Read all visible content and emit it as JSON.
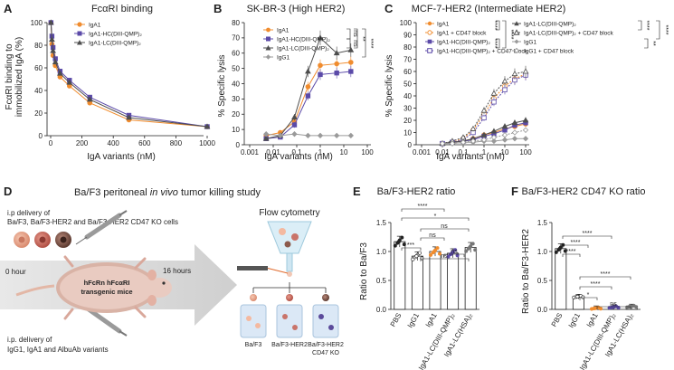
{
  "colors": {
    "iga1": "#f08c2e",
    "hc": "#5b4aa8",
    "lc": "#4d4d4d",
    "igg1": "#9a9a9a",
    "arrow": "#d8d8d8"
  },
  "panels": {
    "A": {
      "letter": "A",
      "title": "FcαRI binding",
      "ylabel": "FcαRI binding to immobilized IgA (%)",
      "xlabel": "IgA variants (nM)",
      "yticks": [
        "0",
        "20",
        "40",
        "60",
        "80",
        "100"
      ],
      "xticks": [
        "0",
        "200",
        "400",
        "600",
        "800",
        "1000"
      ],
      "legend": [
        "IgA1",
        "IgA1-HC(DIII-QMP)₂",
        "IgA1-LC(DIII-QMP)₂"
      ]
    },
    "B": {
      "letter": "B",
      "title": "SK-BR-3 (High HER2)",
      "ylabel": "% Specific lysis",
      "xlabel": "IgA variants (nM)",
      "yticks": [
        "0",
        "10",
        "20",
        "30",
        "40",
        "50",
        "60",
        "70",
        "80"
      ],
      "xticks": [
        "0.001",
        "0.01",
        "0.1",
        "1",
        "10",
        "100"
      ],
      "legend": [
        "IgA1",
        "IgA1-HC(DIII-QMP)₂",
        "IgA1-LC(DIII-QMP)₂",
        "IgG1"
      ],
      "sig": [
        "ns",
        "ns",
        "**",
        "****"
      ]
    },
    "C": {
      "letter": "C",
      "title": "MCF-7-HER2 (Intermediate HER2)",
      "ylabel": "% Specific lysis",
      "xlabel": "IgA variants (nM)",
      "yticks": [
        "0",
        "10",
        "20",
        "30",
        "40",
        "50",
        "60",
        "70",
        "80",
        "90",
        "100"
      ],
      "xticks": [
        "0.001",
        "0.01",
        "0.1",
        "1",
        "10",
        "100"
      ],
      "legend": [
        "IgA1",
        "IgA1 + CD47 block",
        "IgA1-HC(DIII-QMP)₂",
        "IgA1-HC(DIII-QMP)₂ + CD47 block",
        "IgA1-LC(DIII-QMP)₂",
        "IgA1-LC(DIII-QMP)₂ + CD47 block",
        "IgG1",
        "IgG1 + CD47 block"
      ],
      "sig": [
        "****",
        "****",
        "****",
        "****",
        "**",
        "****"
      ]
    },
    "D": {
      "letter": "D",
      "title_a": "Ba/F3 peritoneal ",
      "title_b": "in vivo",
      "title_c": " tumor killing study",
      "delivery_top": [
        "i.p delivery of",
        "Ba/F3, Ba/F3-HER2 and Ba/F3-HER2 CD47 KO cells"
      ],
      "hour0": "0 hour",
      "hour16": "16 hours",
      "mouse": [
        "hFcRn hFcαRI",
        "transgenic mice"
      ],
      "delivery_bottom": [
        "i.p. delivery of",
        "IgG1, IgA1 and AlbuAb variants"
      ],
      "flow": "Flow cytometry",
      "tubes": [
        "Ba/F3",
        "Ba/F3-HER2",
        "Ba/F3-HER2",
        "CD47 KO"
      ]
    },
    "E": {
      "letter": "E",
      "title": "Ba/F3-HER2 ratio",
      "ylabel": "Ratio to Ba/F3",
      "yticks": [
        "0.0",
        "0.5",
        "1.0",
        "1.5"
      ],
      "groups": [
        "PBS",
        "IgG1",
        "IgA1",
        "IgA1-LC(DIII-QMP)₂",
        "IgA1-LC(HSA)₂"
      ],
      "sig": [
        "****",
        "*",
        "***",
        "ns",
        "ns",
        "ns",
        "ns"
      ]
    },
    "F": {
      "letter": "F",
      "title": "Ba/F3-HER2 CD47  KO ratio",
      "ylabel": "Ratio to Ba/F3-HER2",
      "yticks": [
        "0.0",
        "0.5",
        "1.0",
        "1.5"
      ],
      "groups": [
        "PBS",
        "IgG1",
        "IgA1",
        "IgA1-LC(DIII-QMP)₂",
        "IgA1-LC(HSA)₂"
      ],
      "sig": [
        "****",
        "****",
        "****",
        "****",
        "****",
        "*",
        "ns"
      ]
    }
  },
  "chart_data": [
    {
      "type": "line",
      "panel": "A",
      "title": "FcαRI binding",
      "xlabel": "IgA variants (nM)",
      "ylabel": "FcαRI binding to immobilized IgA (%)",
      "xlim": [
        0,
        1000
      ],
      "ylim": [
        0,
        100
      ],
      "x": [
        2,
        8,
        15,
        30,
        60,
        120,
        250,
        500,
        1000
      ],
      "series": [
        {
          "name": "IgA1",
          "values": [
            100,
            81,
            71,
            62,
            52,
            44,
            29,
            14,
            8
          ]
        },
        {
          "name": "IgA1-HC(DIII-QMP)₂",
          "values": [
            100,
            88,
            78,
            68,
            57,
            49,
            34,
            18,
            8
          ]
        },
        {
          "name": "IgA1-LC(DIII-QMP)₂",
          "values": [
            100,
            85,
            75,
            65,
            55,
            47,
            32,
            16,
            8
          ]
        }
      ]
    },
    {
      "type": "line",
      "panel": "B",
      "title": "SK-BR-3 (High HER2)",
      "xlabel": "IgA variants (nM)",
      "ylabel": "% Specific lysis",
      "xscale": "log",
      "xlim": [
        0.001,
        100
      ],
      "ylim": [
        0,
        80
      ],
      "x": [
        0.005,
        0.02,
        0.08,
        0.3,
        1,
        5,
        20
      ],
      "series": [
        {
          "name": "IgA1",
          "values": [
            6,
            8,
            15,
            38,
            52,
            53,
            54
          ]
        },
        {
          "name": "IgA1-HC(DIII-QMP)₂",
          "values": [
            4,
            5,
            13,
            32,
            46,
            47,
            48
          ]
        },
        {
          "name": "IgA1-LC(DIII-QMP)₂",
          "values": [
            4,
            6,
            18,
            48,
            70,
            60,
            62
          ]
        },
        {
          "name": "IgG1",
          "values": [
            7,
            6,
            7,
            6,
            6,
            6,
            6
          ]
        }
      ]
    },
    {
      "type": "line",
      "panel": "C",
      "title": "MCF-7-HER2 (Intermediate HER2)",
      "xlabel": "IgA variants (nM)",
      "ylabel": "% Specific lysis",
      "xscale": "log",
      "xlim": [
        0.001,
        100
      ],
      "ylim": [
        0,
        100
      ],
      "x": [
        0.01,
        0.03,
        0.1,
        0.3,
        1,
        3,
        10,
        30,
        100
      ],
      "series": [
        {
          "name": "IgA1",
          "values": [
            1,
            2,
            3,
            5,
            8,
            10,
            13,
            15,
            17
          ]
        },
        {
          "name": "IgA1 + CD47 block",
          "values": [
            1,
            2,
            5,
            12,
            25,
            38,
            48,
            54,
            58
          ]
        },
        {
          "name": "IgA1-HC(DIII-QMP)₂",
          "values": [
            1,
            2,
            3,
            4,
            7,
            9,
            12,
            16,
            18
          ]
        },
        {
          "name": "IgA1-HC(DIII-QMP)₂ + CD47 block",
          "values": [
            1,
            2,
            4,
            10,
            22,
            35,
            45,
            53,
            57
          ]
        },
        {
          "name": "IgA1-LC(DIII-QMP)₂",
          "values": [
            1,
            2,
            3,
            5,
            8,
            11,
            15,
            18,
            20
          ]
        },
        {
          "name": "IgA1-LC(DIII-QMP)₂ + CD47 block",
          "values": [
            1,
            3,
            6,
            13,
            28,
            42,
            52,
            58,
            60
          ]
        },
        {
          "name": "IgG1",
          "values": [
            1,
            1,
            2,
            2,
            3,
            3,
            4,
            5,
            5
          ]
        },
        {
          "name": "IgG1 + CD47 block",
          "values": [
            1,
            1,
            2,
            3,
            4,
            6,
            8,
            10,
            12
          ]
        }
      ]
    },
    {
      "type": "bar",
      "panel": "E",
      "title": "Ba/F3-HER2 ratio",
      "ylabel": "Ratio to Ba/F3",
      "ylim": [
        0,
        1.5
      ],
      "categories": [
        "PBS",
        "IgG1",
        "IgA1",
        "IgA1-LC(DIII-QMP)₂",
        "IgA1-LC(HSA)₂"
      ],
      "values": [
        1.17,
        0.92,
        1.0,
        0.97,
        1.07
      ]
    },
    {
      "type": "bar",
      "panel": "F",
      "title": "Ba/F3-HER2 CD47  KO ratio",
      "ylabel": "Ratio to Ba/F3-HER2",
      "ylim": [
        0,
        1.5
      ],
      "categories": [
        "PBS",
        "IgG1",
        "IgA1",
        "IgA1-LC(DIII-QMP)₂",
        "IgA1-LC(HSA)₂"
      ],
      "values": [
        1.05,
        0.22,
        0.02,
        0.04,
        0.05
      ]
    }
  ]
}
